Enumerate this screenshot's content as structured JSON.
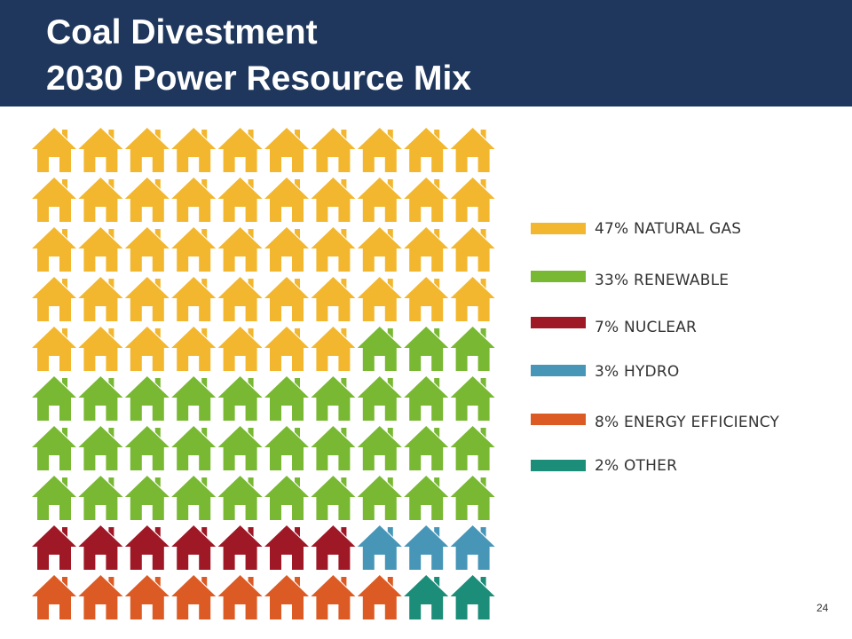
{
  "slide": {
    "title_line1": "Coal Divestment",
    "title_line2": "2030 Power Resource Mix",
    "page_number": "24",
    "header_color": "#1f375c"
  },
  "chart_data": {
    "type": "waffle",
    "icon": "house-icon",
    "grid": {
      "rows": 10,
      "cols": 10
    },
    "series": [
      {
        "label": "47% NATURAL GAS",
        "value": 47,
        "color": "#f2b72e"
      },
      {
        "label": "33% RENEWABLE",
        "value": 33,
        "color": "#78b832"
      },
      {
        "label": "7% NUCLEAR",
        "value": 7,
        "color": "#9e1826"
      },
      {
        "label": "3% HYDRO",
        "value": 3,
        "color": "#4796b8"
      },
      {
        "label": "8% ENERGY EFFICIENCY",
        "value": 8,
        "color": "#dc5b24"
      },
      {
        "label": "2% OTHER",
        "value": 2,
        "color": "#1b8d78"
      }
    ]
  }
}
